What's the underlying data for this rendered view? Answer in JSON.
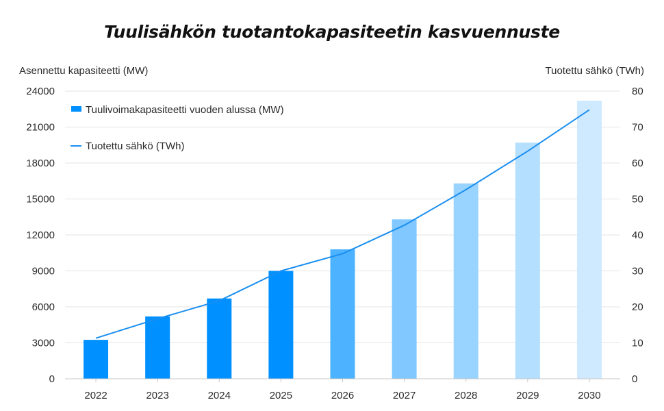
{
  "chart_data": {
    "type": "bar",
    "title": "Tuulisähkön tuotantokapasiteetin kasvuennuste",
    "ylabel_left": "Asennettu kapasiteetti (MW)",
    "ylabel_right": "Tuotettu sähkö (TWh)",
    "categories": [
      "2022",
      "2023",
      "2024",
      "2025",
      "2026",
      "2027",
      "2028",
      "2029",
      "2030"
    ],
    "ylim_left": [
      0,
      24000
    ],
    "yticks_left": [
      "0",
      "3000",
      "6000",
      "9000",
      "12000",
      "15000",
      "18000",
      "21000",
      "24000"
    ],
    "ylim_right": [
      0,
      80
    ],
    "yticks_right": [
      "0",
      "10",
      "20",
      "30",
      "40",
      "50",
      "60",
      "70",
      "80"
    ],
    "grid": true,
    "legend_position": "top-left",
    "series": [
      {
        "name": "Tuulivoimakapasiteetti vuoden alussa (MW)",
        "type": "bar",
        "axis": "left",
        "values": [
          3250,
          5200,
          6700,
          9000,
          10800,
          13300,
          16300,
          19700,
          23200
        ],
        "colors": [
          "#0090ff",
          "#0090ff",
          "#0090ff",
          "#0090ff",
          "#4db2ff",
          "#80c8ff",
          "#99d3ff",
          "#b5dfff",
          "#cfe9ff"
        ]
      },
      {
        "name": "Tuotettu sähkö (TWh)",
        "type": "line",
        "axis": "right",
        "color": "#1a8ff0",
        "values": [
          11.3,
          16.7,
          21.7,
          30.0,
          34.8,
          42.7,
          52.6,
          63.3,
          74.8
        ]
      }
    ]
  }
}
